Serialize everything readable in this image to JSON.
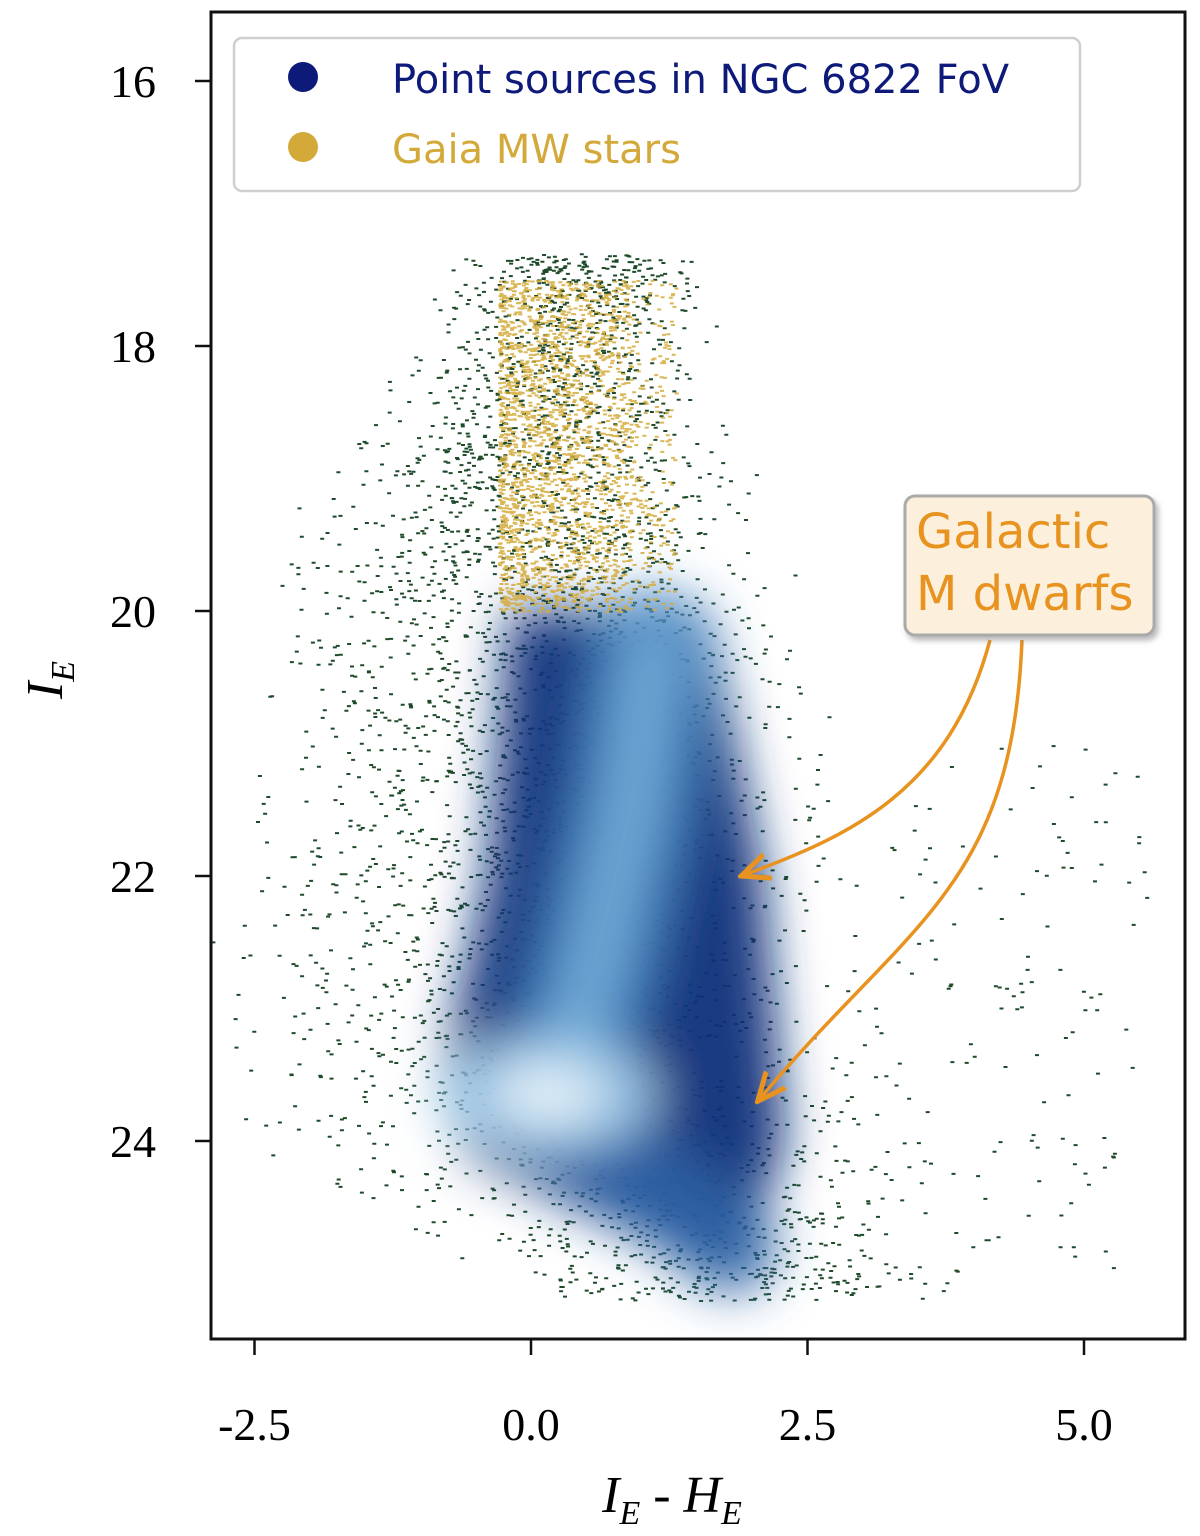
{
  "chart_data": {
    "type": "scatter",
    "subtype": "color-magnitude density",
    "title": "",
    "xlabel": {
      "main": "I",
      "sub1": "E",
      "sep": " - ",
      "main2": "H",
      "sub2": "E"
    },
    "ylabel": {
      "main": "I",
      "sub": "E"
    },
    "xlim": [
      -2.9,
      5.9
    ],
    "ylim": [
      25.0,
      15.5
    ],
    "y_inverted": true,
    "xticks": [
      -2.5,
      0.0,
      2.5,
      5.0
    ],
    "xtick_labels": [
      "-2.5",
      "0.0",
      "2.5",
      "5.0"
    ],
    "yticks": [
      16,
      18,
      20,
      22,
      24
    ],
    "ytick_labels": [
      "16",
      "18",
      "20",
      "22",
      "24"
    ],
    "grid": false,
    "legend_position": "top-left",
    "series": [
      {
        "name": "Point sources in NGC 6822 FoV",
        "color": "#0d1a7a",
        "components": [
          {
            "kind": "diagonal_sequence",
            "points": [
              [
                1.1,
                20.3
              ],
              [
                0.9,
                21.5
              ],
              [
                0.6,
                22.6
              ],
              [
                0.3,
                23.5
              ]
            ],
            "width": 0.55,
            "weight": 1.0
          },
          {
            "kind": "blob",
            "x": 0.15,
            "y": 23.65,
            "sx": 0.45,
            "sy": 0.35,
            "weight": 1.3
          },
          {
            "kind": "band",
            "points": [
              [
                0.2,
                23.9
              ],
              [
                1.0,
                24.3
              ],
              [
                1.8,
                24.8
              ]
            ],
            "width": 0.4,
            "weight": 0.8
          },
          {
            "kind": "outer_envelope",
            "x_range": [
              -2.6,
              3.6
            ],
            "y_range": [
              17.4,
              25.0
            ]
          }
        ]
      },
      {
        "name": "Gaia MW stars",
        "color": "#d3aa3a",
        "x_range": [
          -0.3,
          1.3
        ],
        "y_range": [
          17.5,
          20.0
        ]
      }
    ],
    "annotations": [
      {
        "text_lines": [
          "Galactic",
          "M dwarfs"
        ],
        "color": "#e8921f",
        "box_fill": "#fcf0dc",
        "arrow_targets": [
          [
            1.9,
            22.0
          ],
          [
            2.05,
            23.7
          ]
        ]
      }
    ]
  }
}
